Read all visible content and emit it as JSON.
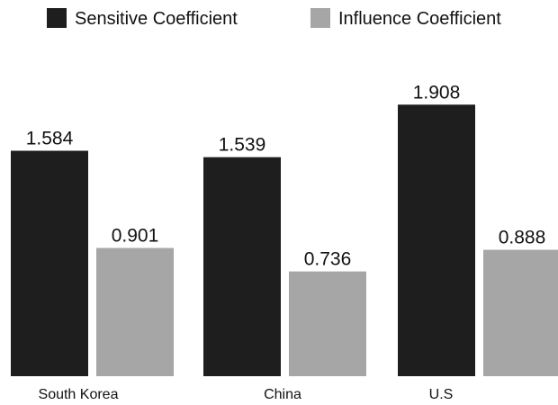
{
  "chart_data": {
    "type": "bar",
    "categories": [
      "South Korea",
      "China",
      "U.S"
    ],
    "series": [
      {
        "name": "Sensitive Coefficient",
        "values": [
          1.584,
          1.539,
          1.908
        ],
        "value_labels": [
          "1.584",
          "1.539",
          "1.908"
        ],
        "color": "#1e1e1e"
      },
      {
        "name": "Influence Coefficient",
        "values": [
          0.901,
          0.736,
          0.888
        ],
        "value_labels": [
          "0.901",
          "0.736",
          "0.888"
        ],
        "color": "#a6a6a6"
      }
    ],
    "ylim": [
      0,
      2.15
    ],
    "grid": false,
    "axes_visible": false,
    "legend_position": "top"
  }
}
